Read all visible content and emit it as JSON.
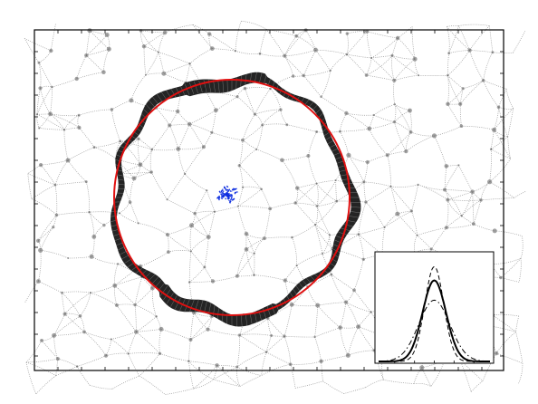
{
  "figure": {
    "description_text": "",
    "colors": {
      "frame": "#000000",
      "network": "#9a9a9a",
      "ring": "#111111",
      "fit_circle": "#e01010",
      "center_cluster": "#1030e0",
      "background": "#ffffff"
    }
  },
  "inset": {
    "curves": [
      {
        "style": "solid",
        "amplitude": 0.82,
        "width": 0.105
      },
      {
        "style": "dashed",
        "amplitude": 0.96,
        "width": 0.085
      },
      {
        "style": "dash-dot",
        "amplitude": 0.62,
        "width": 0.14
      }
    ]
  }
}
